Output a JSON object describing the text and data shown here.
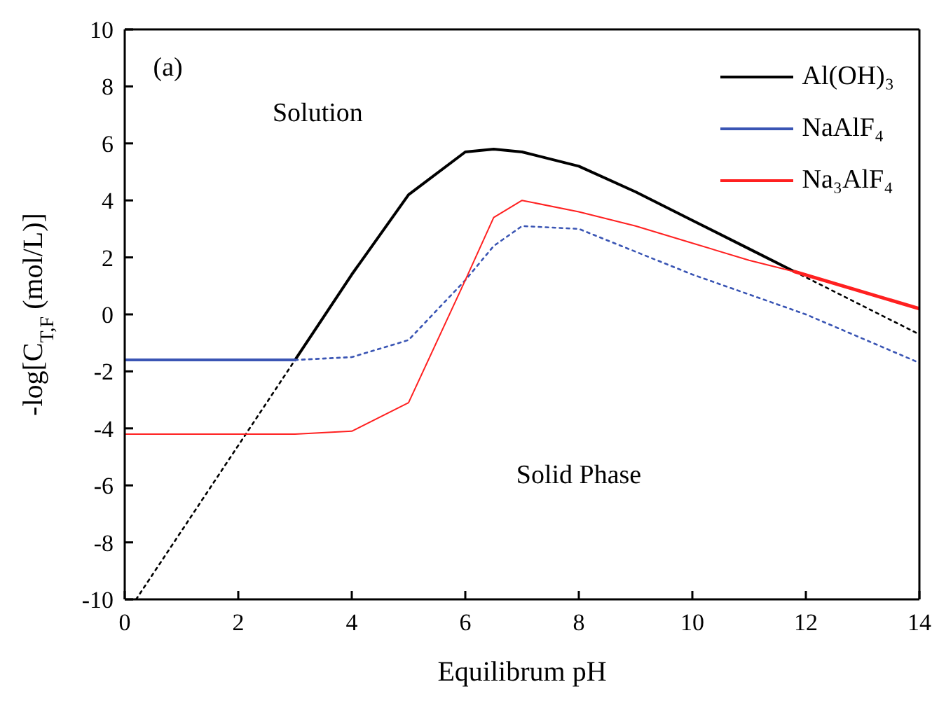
{
  "chart_data": {
    "type": "line",
    "xlabel": "Equilibrum pH",
    "ylabel": "-log[C$_{T,F}$ (mol/L)]",
    "xlim": [
      0,
      14
    ],
    "xticks": [
      0,
      2,
      4,
      6,
      8,
      10,
      12,
      14
    ],
    "ylim": [
      -10,
      10
    ],
    "yticks": [
      -10,
      -8,
      -6,
      -4,
      -2,
      0,
      2,
      4,
      6,
      8,
      10
    ],
    "grid": false,
    "legend": "top right",
    "marker": "none",
    "annotations": [
      "(a)",
      "Solution",
      "Solid Phase"
    ],
    "series": [
      {
        "name": "Al(OH)₃",
        "color": "#000000",
        "line_style": "solid",
        "x": [
          3,
          4,
          5,
          6,
          6.5,
          7,
          8,
          9,
          10,
          11,
          11.8
        ],
        "values": [
          -1.6,
          1.4,
          4.2,
          5.7,
          5.8,
          5.7,
          5.2,
          4.3,
          3.3,
          2.3,
          1.5
        ]
      },
      {
        "color": "#000000",
        "line_style": "dotted",
        "x": [
          0.2,
          3
        ],
        "values": [
          -10,
          -1.6
        ]
      },
      {
        "color": "#000000",
        "line_style": "dotted",
        "x": [
          11.8,
          14
        ],
        "values": [
          1.5,
          -0.7
        ]
      },
      {
        "name": "NaAlF₄",
        "color": "#3a55b4",
        "line_style": "solid",
        "x": [
          0,
          3
        ],
        "values": [
          -1.6,
          -1.6
        ]
      },
      {
        "color": "#3a55b4",
        "line_style": "dotted",
        "x": [
          3,
          4,
          5,
          6,
          6.5,
          7,
          8,
          9,
          10,
          11,
          12,
          14
        ],
        "values": [
          -1.6,
          -1.5,
          -0.9,
          1.2,
          2.4,
          3.1,
          3.0,
          2.2,
          1.4,
          0.7,
          0,
          -1.7
        ]
      },
      {
        "name": "Na₃AlF₄",
        "color": "#ff2020",
        "line_style": "solid",
        "x": [
          0,
          3,
          4,
          5,
          6,
          6.5,
          7,
          8,
          9,
          10,
          11,
          11.8
        ],
        "values": [
          -4.2,
          -4.2,
          -4.1,
          -3.1,
          1.2,
          3.4,
          4.0,
          3.6,
          3.1,
          2.5,
          1.9,
          1.5
        ]
      },
      {
        "color": "#ff2020",
        "line_style": "solid",
        "x": [
          11.8,
          14
        ],
        "values": [
          1.5,
          0.2
        ]
      }
    ]
  }
}
